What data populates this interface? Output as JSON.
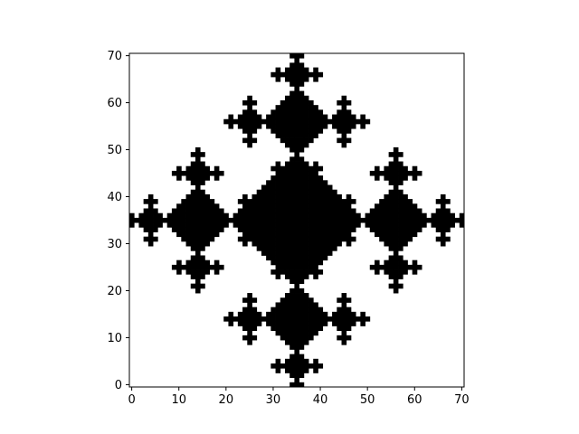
{
  "chart_data": {
    "type": "heatmap",
    "title": "",
    "xlabel": "",
    "ylabel": "",
    "xlim": [
      -0.5,
      70.5
    ],
    "ylim": [
      -0.5,
      70.5
    ],
    "origin": "lower",
    "grid": false,
    "colormap": "binary",
    "fill_color": "#000000",
    "background_color": "#ffffff",
    "description_of_values": "binary cell grid; 1 = black (filled), 0 = white",
    "x_ticks": [
      0,
      10,
      20,
      30,
      40,
      50,
      60,
      70
    ],
    "x_tick_labels": [
      "0",
      "10",
      "20",
      "30",
      "40",
      "50",
      "60",
      "70"
    ],
    "y_ticks": [
      0,
      10,
      20,
      30,
      40,
      50,
      60,
      70
    ],
    "y_tick_labels": [
      "0",
      "10",
      "20",
      "30",
      "40",
      "50",
      "60",
      "70"
    ],
    "fractal": {
      "center": [
        35,
        35
      ],
      "seed_half_size": 6,
      "levels": [
        {
          "scale": 1,
          "size_exponent": 2
        },
        {
          "scale": 2,
          "size_exponent": 1
        },
        {
          "scale": 3,
          "size_exponent": 0
        }
      ],
      "arm_offsets": [
        16,
        8,
        4,
        2
      ],
      "cross_arm": 1
    }
  }
}
